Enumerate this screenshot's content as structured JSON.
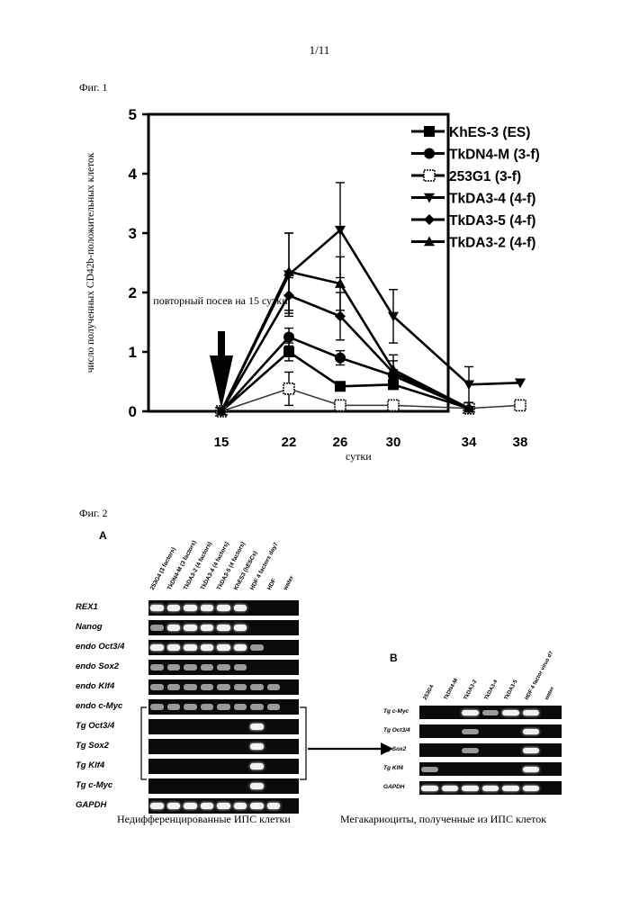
{
  "page_number": "1/11",
  "fig1": {
    "label": "Фиг. 1",
    "chart_data": {
      "type": "line",
      "title": "",
      "xlabel": "сутки",
      "ylabel": "число полученных CD42b-положительных клеток",
      "x": [
        15,
        22,
        26,
        30,
        34,
        38
      ],
      "yticks": [
        0,
        1,
        2,
        3,
        4,
        5
      ],
      "ylim": [
        0,
        5
      ],
      "annotation": "повторный посев на 15 сутки",
      "legend_position": "top-right",
      "series": [
        {
          "name": "KhES-3 (ES)",
          "marker": "square",
          "values": [
            0,
            1.0,
            0.42,
            0.45,
            0.05,
            null
          ],
          "errors": [
            0,
            0.15,
            0.05,
            0.08,
            0.02,
            null
          ]
        },
        {
          "name": "TkDN4-M (3-f)",
          "marker": "circle",
          "values": [
            0,
            1.25,
            0.9,
            0.6,
            0.05,
            null
          ],
          "errors": [
            0,
            0.15,
            0.12,
            0.1,
            0.02,
            null
          ]
        },
        {
          "name": "253G1 (3-f)",
          "marker": "open-square",
          "values": [
            0,
            0.38,
            0.1,
            0.1,
            0.05,
            0.1
          ],
          "errors": [
            0,
            0.28,
            0.03,
            0.05,
            0.02,
            0.03
          ]
        },
        {
          "name": "TkDA3-4 (4-f)",
          "marker": "triangle-down",
          "values": [
            0,
            2.3,
            3.05,
            1.6,
            0.45,
            0.48
          ],
          "errors": [
            0,
            0.7,
            0.8,
            0.45,
            0.3,
            0
          ]
        },
        {
          "name": "TkDA3-5 (4-f)",
          "marker": "diamond",
          "values": [
            0,
            1.95,
            1.6,
            0.65,
            0.05,
            null
          ],
          "errors": [
            0,
            0.3,
            0.4,
            0.2,
            0.03,
            null
          ]
        },
        {
          "name": "TkDA3-2 (4-f)",
          "marker": "triangle-up",
          "values": [
            0,
            2.35,
            2.15,
            0.7,
            0.05,
            null
          ],
          "errors": [
            0,
            0.65,
            0.45,
            0.25,
            0.03,
            null
          ]
        }
      ]
    }
  },
  "fig2": {
    "label": "Фиг. 2",
    "panel_a": {
      "letter": "A",
      "lanes": [
        "253G4 (3 factors)",
        "TkDN4-M (3 factors)",
        "TkDA3-2 (4 factors)",
        "TkDA3-4 (4 factors)",
        "TkDA3-5 (4 factors)",
        "KhES3 (hESCs)",
        "HDF 4 factors day7",
        "HDF",
        "water"
      ],
      "rows": [
        "REX1",
        "Nanog",
        "endo Oct3/4",
        "endo Sox2",
        "endo Klf4",
        "endo c-Myc",
        "Tg Oct3/4",
        "Tg Sox2",
        "Tg Klf4",
        "Tg c-Myc",
        "GAPDH"
      ],
      "caption": "Недифференцированные ИПС клетки"
    },
    "panel_b": {
      "letter": "B",
      "lanes": [
        "253G4",
        "TkDN4-M",
        "TkDA3-2",
        "TkDA3-4",
        "TkDA3-5",
        "HDF 4 factor virus d7",
        "water"
      ],
      "rows": [
        "Tg c-Myc",
        "Tg Oct3/4",
        "Tg Sox2",
        "Tg Klf4",
        "GAPDH"
      ],
      "caption": "Мегакариоциты, полученные из ИПС клеток"
    }
  }
}
